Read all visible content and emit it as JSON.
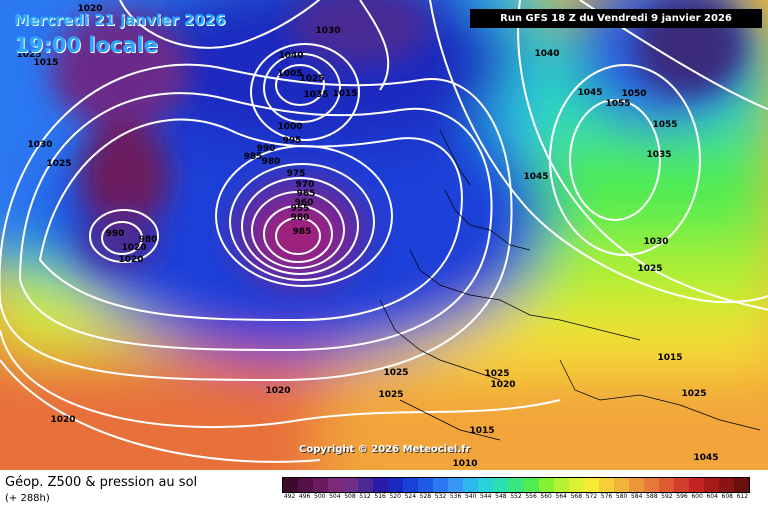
{
  "header": {
    "valid_date": "Mercredi 21 janvier 2026",
    "valid_time": "19:00 locale",
    "run_info": "Run GFS 18 Z du Vendredi 9 janvier 2026"
  },
  "copyright": "Copyright © 2026 Meteociel.fr",
  "footer": {
    "field_title": "Géop. Z500 & pression au sol",
    "lead_time": "(+ 288h)"
  },
  "legend": {
    "values": [
      "492",
      "496",
      "500",
      "504",
      "508",
      "512",
      "516",
      "520",
      "524",
      "528",
      "532",
      "536",
      "540",
      "544",
      "548",
      "552",
      "556",
      "560",
      "564",
      "568",
      "572",
      "576",
      "580",
      "584",
      "588",
      "592",
      "596",
      "600",
      "604",
      "608",
      "612"
    ],
    "colors": [
      "#3d0a2e",
      "#551048",
      "#6a1a5e",
      "#7a2a78",
      "#6e2e8a",
      "#4a2a94",
      "#2a1aa8",
      "#1a2ac0",
      "#1a40d8",
      "#1f5ae6",
      "#2a78f2",
      "#3a96f6",
      "#2eb8f0",
      "#28d2d8",
      "#2ae0b0",
      "#3ae680",
      "#50ec50",
      "#86f032",
      "#b6f232",
      "#def032",
      "#f6ea36",
      "#f6d038",
      "#f0b43a",
      "#ec963a",
      "#e8783a",
      "#e05a32",
      "#d43c2c",
      "#c42424",
      "#a81a1a",
      "#8a1414",
      "#6a0e0e"
    ]
  },
  "pressure_labels": [
    "1020",
    "1025",
    "1015",
    "1030",
    "1025",
    "1030",
    "1040",
    "1045",
    "1050",
    "1055",
    "1055",
    "1035",
    "1030",
    "1025",
    "1045",
    "1040",
    "1025",
    "1035",
    "1015",
    "1005",
    "1000",
    "995",
    "990",
    "985",
    "980",
    "975",
    "970",
    "965",
    "960",
    "955",
    "980",
    "985",
    "990",
    "980",
    "1020",
    "1020",
    "1020",
    "1020",
    "1025",
    "1025",
    "1025",
    "1020",
    "1015",
    "1010",
    "1015",
    "1025",
    "1045"
  ]
}
